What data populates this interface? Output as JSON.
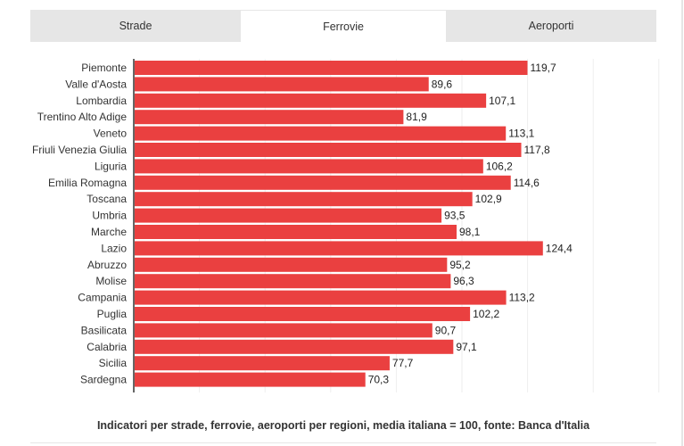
{
  "tabs": [
    {
      "label": "Strade",
      "active": false
    },
    {
      "label": "Ferrovie",
      "active": true
    },
    {
      "label": "Aeroporti",
      "active": false
    }
  ],
  "caption": "Indicatori per strade, ferrovie, aeroporti per regioni, media italiana = 100, fonte: Banca d'Italia",
  "colors": {
    "bar": "#ea4040",
    "grid": "#eeeeee",
    "axis": "#333333",
    "tab_bg": "#e6e6e6"
  },
  "chart_data": {
    "type": "bar",
    "orientation": "horizontal",
    "title": "",
    "xlabel": "",
    "ylabel": "",
    "xlim": [
      0,
      160
    ],
    "grid": true,
    "categories": [
      "Piemonte",
      "Valle d'Aosta",
      "Lombardia",
      "Trentino Alto Adige",
      "Veneto",
      "Friuli Venezia Giulia",
      "Liguria",
      "Emilia Romagna",
      "Toscana",
      "Umbria",
      "Marche",
      "Lazio",
      "Abruzzo",
      "Molise",
      "Campania",
      "Puglia",
      "Basilicata",
      "Calabria",
      "Sicilia",
      "Sardegna"
    ],
    "values": [
      119.7,
      89.6,
      107.1,
      81.9,
      113.1,
      117.8,
      106.2,
      114.6,
      102.9,
      93.5,
      98.1,
      124.4,
      95.2,
      96.3,
      113.2,
      102.2,
      90.7,
      97.1,
      77.7,
      70.3
    ],
    "value_labels": [
      "119,7",
      "89,6",
      "107,1",
      "81,9",
      "113,1",
      "117,8",
      "106,2",
      "114,6",
      "102,9",
      "93,5",
      "98,1",
      "124,4",
      "95,2",
      "96,3",
      "113,2",
      "102,2",
      "90,7",
      "97,1",
      "77,7",
      "70,3"
    ]
  }
}
